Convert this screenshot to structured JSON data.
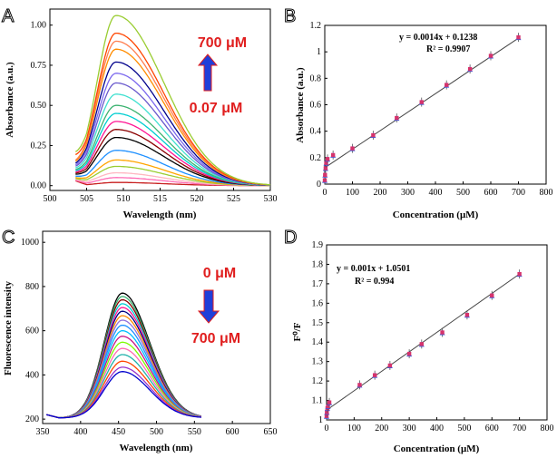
{
  "panels": {
    "a": {
      "label": "A"
    },
    "b": {
      "label": "B"
    },
    "c": {
      "label": "C"
    },
    "d": {
      "label": "D"
    }
  },
  "colors": {
    "arrow_fill": "#1f3fd9",
    "arrow_edge": "#e01e1e",
    "annotation": "#e01e1e",
    "fit_line": "#444444",
    "marker_a": "#3b5bdb",
    "marker_b": "#d6336c"
  },
  "chart_data": [
    {
      "id": "a",
      "type": "line",
      "title": "",
      "xlabel": "Wavelength (nm)",
      "ylabel": "Absorbance (a.u.)",
      "xlim": [
        500,
        530
      ],
      "ylim": [
        -0.03,
        1.1
      ],
      "xticks": [
        "500",
        "505",
        "510",
        "515",
        "520",
        "525",
        "530"
      ],
      "yticks": [
        "0.00",
        "0.25",
        "0.50",
        "0.75",
        "1.00"
      ],
      "peak_nm": 509,
      "start_nm": 503.5,
      "end_nm": 530,
      "series_peaks": [
        0.02,
        0.05,
        0.08,
        0.12,
        0.16,
        0.22,
        0.3,
        0.35,
        0.4,
        0.45,
        0.5,
        0.57,
        0.64,
        0.7,
        0.77,
        0.85,
        0.9,
        0.95,
        1.06
      ],
      "series_colors": [
        "#c81e1e",
        "#ff69b4",
        "#ffb6c1",
        "#9acd32",
        "#ffa500",
        "#1e90ff",
        "#000000",
        "#8b0000",
        "#ff1493",
        "#00ced1",
        "#3cb371",
        "#40e0d0",
        "#6a5acd",
        "#7b68ee",
        "#00008b",
        "#ff8c00",
        "#ff7f50",
        "#ff4500",
        "#9acd32"
      ],
      "annotations": {
        "top": "700 μM",
        "bottom": "0.07 μM"
      }
    },
    {
      "id": "b",
      "type": "scatter",
      "title": "",
      "xlabel": "Concentration (μM)",
      "ylabel": "Absorbance (a.u.)",
      "xlim": [
        0,
        800
      ],
      "ylim": [
        0,
        1.2
      ],
      "xticks": [
        "0",
        "100",
        "200",
        "300",
        "400",
        "500",
        "600",
        "700",
        "800"
      ],
      "yticks": [
        "0",
        "0.2",
        "0.4",
        "0.6",
        "0.8",
        "1",
        "1.2"
      ],
      "x": [
        0.07,
        1,
        3,
        5,
        10,
        30,
        100,
        175,
        260,
        350,
        440,
        525,
        600,
        700
      ],
      "y": [
        0.03,
        0.07,
        0.12,
        0.16,
        0.19,
        0.22,
        0.27,
        0.37,
        0.5,
        0.62,
        0.75,
        0.87,
        0.97,
        1.11
      ],
      "fit": {
        "slope": 0.0014,
        "intercept": 0.1238
      },
      "equation": "y = 0.0014x + 0.1238",
      "r2": "R² = 0.9907"
    },
    {
      "id": "c",
      "type": "line",
      "title": "",
      "xlabel": "Wavelength (nm)",
      "ylabel": "Fluorescence intensity",
      "xlim": [
        350,
        650
      ],
      "ylim": [
        180,
        1050
      ],
      "xticks": [
        "350",
        "400",
        "450",
        "500",
        "550",
        "600",
        "650"
      ],
      "yticks": [
        "200",
        "400",
        "600",
        "800",
        "1000"
      ],
      "peak_nm": 455,
      "start_nm": 355,
      "end_nm": 560,
      "series_peaks": [
        770,
        755,
        740,
        722,
        705,
        688,
        668,
        648,
        625,
        600,
        575,
        548,
        520,
        492,
        462,
        435,
        415
      ],
      "series_colors": [
        "#000000",
        "#3cb371",
        "#8b0000",
        "#00ced1",
        "#ff1493",
        "#000080",
        "#ff8c00",
        "#9370db",
        "#1e90ff",
        "#00bfff",
        "#c71585",
        "#7cfc00",
        "#ff69b4",
        "#20b2aa",
        "#ff4500",
        "#9932cc",
        "#0000cd"
      ],
      "annotations": {
        "top": "0 μM",
        "bottom": "700 μM"
      }
    },
    {
      "id": "d",
      "type": "scatter",
      "title": "",
      "xlabel": "Concentration (μM)",
      "ylabel": "F⁰/F",
      "xlim": [
        0,
        800
      ],
      "ylim": [
        1,
        1.9
      ],
      "xticks": [
        "0",
        "100",
        "200",
        "300",
        "400",
        "500",
        "600",
        "700",
        "800"
      ],
      "yticks": [
        "1",
        "1.1",
        "1.2",
        "1.3",
        "1.4",
        "1.5",
        "1.6",
        "1.7",
        "1.8",
        "1.9"
      ],
      "x": [
        0,
        1,
        3,
        5,
        10,
        120,
        175,
        230,
        300,
        345,
        420,
        510,
        600,
        700
      ],
      "y": [
        1.02,
        1.04,
        1.06,
        1.07,
        1.09,
        1.18,
        1.23,
        1.28,
        1.34,
        1.39,
        1.45,
        1.54,
        1.64,
        1.75
      ],
      "fit": {
        "slope": 0.001,
        "intercept": 1.0501
      },
      "equation": "y = 0.001x + 1.0501",
      "r2": "R² = 0.994"
    }
  ]
}
